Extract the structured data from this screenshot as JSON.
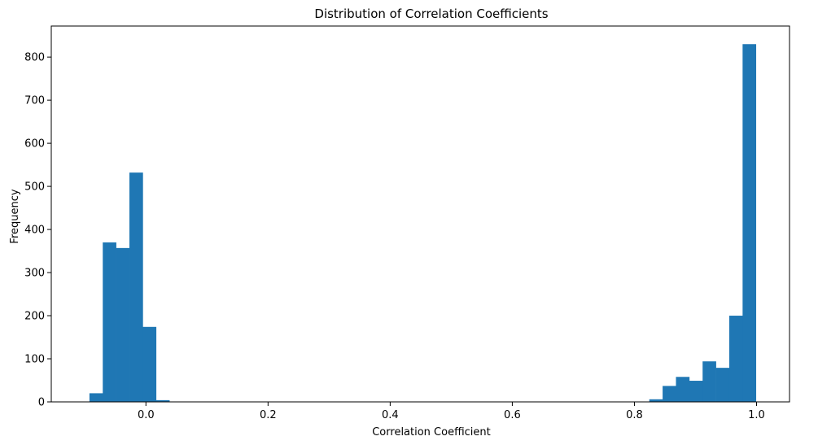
{
  "chart_data": {
    "type": "bar",
    "title": "Distribution of Correlation Coefficients",
    "xlabel": "Correlation Coefficient",
    "ylabel": "Frequency",
    "xlim": [
      -0.155,
      1.054
    ],
    "ylim": [
      0,
      872
    ],
    "x_ticks": [
      0.0,
      0.2,
      0.4,
      0.6,
      0.8,
      1.0
    ],
    "x_tick_labels": [
      "0.0",
      "0.2",
      "0.4",
      "0.6",
      "0.8",
      "1.0"
    ],
    "y_ticks": [
      0,
      100,
      200,
      300,
      400,
      500,
      600,
      700,
      800
    ],
    "y_tick_labels": [
      "0",
      "100",
      "200",
      "300",
      "400",
      "500",
      "600",
      "700",
      "800"
    ],
    "grid": false,
    "color": "#1f77b4",
    "bin_start": -0.0925,
    "bin_width": 0.02183,
    "values": [
      20,
      370,
      357,
      532,
      174,
      4,
      0,
      0,
      0,
      0,
      0,
      0,
      0,
      0,
      0,
      0,
      0,
      0,
      0,
      0,
      0,
      0,
      0,
      0,
      0,
      0,
      0,
      0,
      0,
      0,
      0,
      0,
      0,
      0,
      0,
      0,
      0,
      0,
      0,
      0,
      0,
      0,
      6,
      37,
      58,
      49,
      94,
      79,
      200,
      830
    ]
  }
}
